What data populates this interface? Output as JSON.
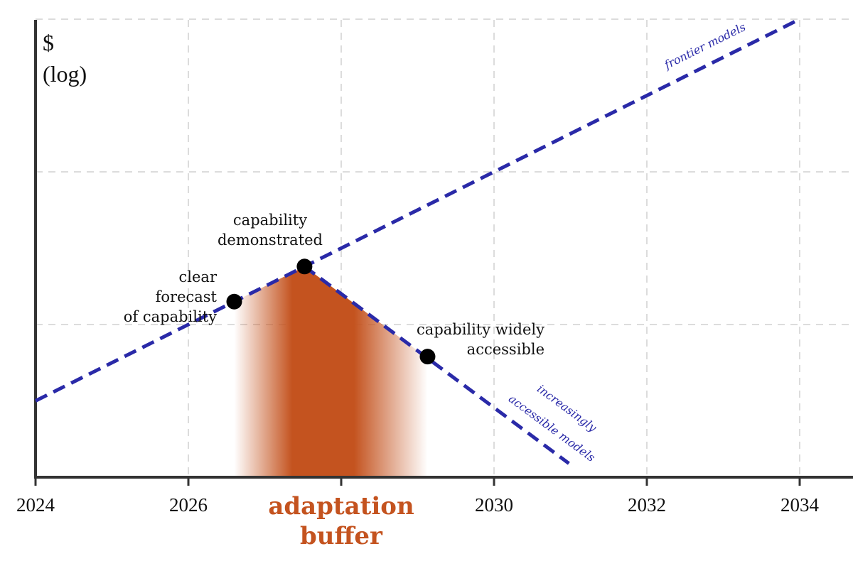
{
  "chart_data": {
    "type": "line",
    "title": "",
    "xlabel": "",
    "ylabel": "$ (log)",
    "ylabel_lines": [
      "$",
      "(log)"
    ],
    "xlim": [
      2024,
      2035.4
    ],
    "ylim": [
      0,
      3
    ],
    "x_ticks": [
      "2024",
      "2026",
      "2028",
      "2030",
      "2032",
      "2034"
    ],
    "x_tick_values": [
      2024,
      2026,
      2028,
      2030,
      2032,
      2034
    ],
    "y_gridlines": [
      1,
      2,
      3
    ],
    "grid": true,
    "series": [
      {
        "name": "frontier models",
        "style": "dashed",
        "color": "#2a2aa8",
        "x": [
          2024,
          2034
        ],
        "y": [
          0.5,
          3.0
        ]
      },
      {
        "name": "increasingly accessible models",
        "style": "dashed",
        "color": "#2a2aa8",
        "x": [
          2027.52,
          2030.98
        ],
        "y": [
          1.38,
          0.09
        ]
      }
    ],
    "points": [
      {
        "label_lines": [
          "clear forecast",
          "of capability"
        ],
        "x": 2026.6,
        "y": 1.15
      },
      {
        "label_lines": [
          "capability",
          "demonstrated"
        ],
        "x": 2027.52,
        "y": 1.38
      },
      {
        "label_lines": [
          "capability widely",
          "accessible"
        ],
        "x": 2029.13,
        "y": 0.79
      }
    ],
    "shaded_region": {
      "label_lines": [
        "adaptation",
        "buffer"
      ],
      "x_range": [
        2026.6,
        2029.13
      ],
      "color": "#c4531f"
    }
  }
}
